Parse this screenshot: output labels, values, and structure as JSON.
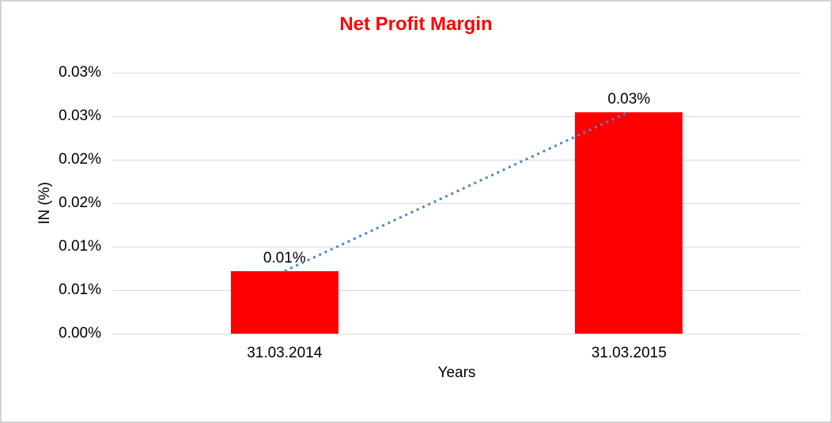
{
  "window": {
    "background_color": "#ffffff",
    "border_color": "#d3d3d3"
  },
  "chart_data": {
    "type": "bar",
    "title": "Net Profit Margin",
    "title_color": "#ff0000",
    "categories": [
      "31.03.2014",
      "31.03.2015"
    ],
    "series": [
      {
        "name": "Net Profit Margin",
        "values": [
          0.0072,
          0.0255
        ],
        "color": "#ff0000"
      }
    ],
    "data_labels": [
      "0.01%",
      "0.03%"
    ],
    "xlabel": "Years",
    "ylabel": "IN (%)",
    "ylim": [
      0,
      0.03
    ],
    "ytick_step": 0.005,
    "ytick_labels_bottom_to_top": [
      "0.00%",
      "0.01%",
      "0.01%",
      "0.02%",
      "0.02%",
      "0.03%",
      "0.03%"
    ],
    "grid": true,
    "gridline_color": "#d9d9d9",
    "legend": "none",
    "trendline": {
      "style": "dotted",
      "color": "#4a86c8",
      "connects": "bar tops, 31.03.2014 to 31.03.2015"
    },
    "text_color": "#000000"
  }
}
